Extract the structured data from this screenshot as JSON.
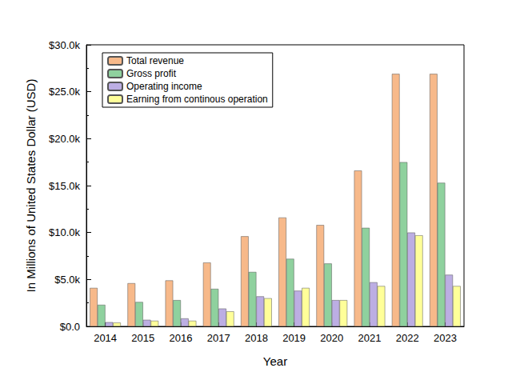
{
  "chart_data": {
    "type": "bar",
    "x_label": "Year",
    "y_label": "In Millions of United States Dollar (USD)",
    "categories": [
      "2014",
      "2015",
      "2016",
      "2017",
      "2018",
      "2019",
      "2020",
      "2021",
      "2022",
      "2023"
    ],
    "series": [
      {
        "name": "Total revenue",
        "color": "#f7b98a",
        "values": [
          4100,
          4600,
          4900,
          6800,
          9600,
          11600,
          10800,
          16600,
          26900,
          26900
        ]
      },
      {
        "name": "Gross profit",
        "color": "#8fd19e",
        "values": [
          2300,
          2600,
          2800,
          4000,
          5800,
          7200,
          6700,
          10500,
          17500,
          15300
        ]
      },
      {
        "name": "Operating income",
        "color": "#bcaee3",
        "values": [
          450,
          700,
          850,
          1900,
          3200,
          3800,
          2800,
          4700,
          10000,
          5500
        ]
      },
      {
        "name": "Earning from continous operation",
        "color": "#ffff99",
        "values": [
          400,
          600,
          600,
          1600,
          3000,
          4100,
          2800,
          4300,
          9700,
          4300
        ]
      }
    ],
    "ylim": [
      0,
      30000
    ],
    "yticks": [
      {
        "value": 0,
        "label": "$0.0"
      },
      {
        "value": 5000,
        "label": "$5.0k"
      },
      {
        "value": 10000,
        "label": "$10.0k"
      },
      {
        "value": 15000,
        "label": "$15.0k"
      },
      {
        "value": 20000,
        "label": "$20.0k"
      },
      {
        "value": 25000,
        "label": "$25.0k"
      },
      {
        "value": 30000,
        "label": "$30.0k"
      }
    ],
    "grid": false,
    "legend": "top-left"
  }
}
